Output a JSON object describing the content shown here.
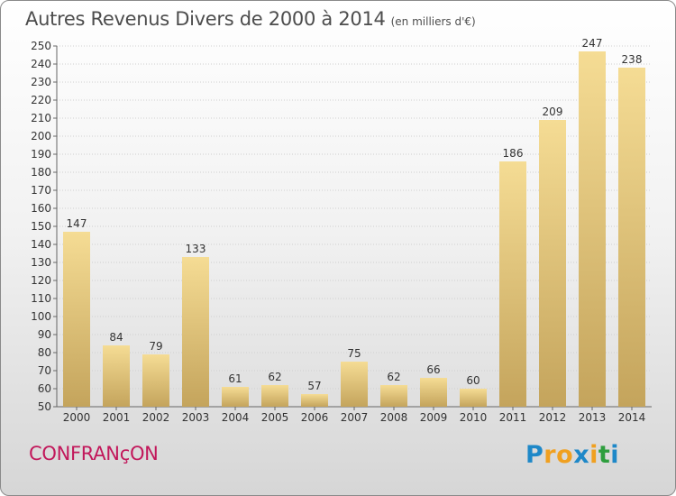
{
  "title": "Autres Revenus Divers de 2000 à 2014",
  "unit_label": "(en milliers d'€)",
  "commune": "CONFRANçON",
  "logo": {
    "letters": [
      "P",
      "r",
      "o",
      "x",
      "i",
      "t",
      "i"
    ],
    "colors": [
      "#1e88c8",
      "#f0a020",
      "#f0a020",
      "#1e88c8",
      "#f0a020",
      "#2e9e3e",
      "#1e88c8"
    ]
  },
  "colors": {
    "bar_light": "#f5dc94",
    "bar_dark": "#c4a45c",
    "commune": "#c2185b",
    "grid": "#cfcfcf"
  },
  "chart_data": {
    "type": "bar",
    "title": "Autres Revenus Divers de 2000 à 2014",
    "subtitle": "(en milliers d'€)",
    "categories": [
      "2000",
      "2001",
      "2002",
      "2003",
      "2004",
      "2005",
      "2006",
      "2007",
      "2008",
      "2009",
      "2010",
      "2011",
      "2012",
      "2013",
      "2014"
    ],
    "values": [
      147,
      84,
      79,
      133,
      61,
      62,
      57,
      75,
      62,
      66,
      60,
      186,
      209,
      247,
      238
    ],
    "ylim": [
      50,
      250
    ],
    "ytick_step": 10,
    "grid": true,
    "data_labels": true,
    "legend": "none"
  }
}
